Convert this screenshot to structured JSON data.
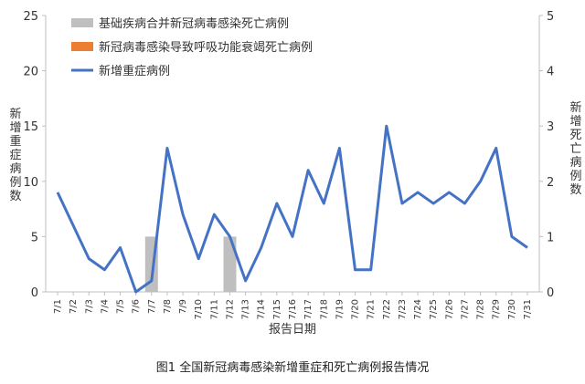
{
  "chart_data": {
    "type": "line",
    "caption": "图1 全国新冠病毒感染新增重症和死亡病例报告情况",
    "xlabel": "报告日期",
    "ylabel_left": "新增重症病例数",
    "ylabel_right": "新增死亡病例数",
    "ylim_left": [
      0,
      25
    ],
    "ylim_right": [
      0,
      5
    ],
    "yticks_left": [
      "0",
      "5",
      "10",
      "15",
      "20",
      "25"
    ],
    "yticks_right": [
      "0",
      "1",
      "2",
      "3",
      "4",
      "5"
    ],
    "grid": false,
    "legend_position": "top-left",
    "categories": [
      "7/1",
      "7/2",
      "7/3",
      "7/4",
      "7/5",
      "7/6",
      "7/7",
      "7/8",
      "7/9",
      "7/10",
      "7/11",
      "7/12",
      "7/13",
      "7/14",
      "7/15",
      "7/16",
      "7/17",
      "7/18",
      "7/19",
      "7/20",
      "7/21",
      "7/22",
      "7/23",
      "7/24",
      "7/25",
      "7/26",
      "7/27",
      "7/28",
      "7/29",
      "7/30",
      "7/31"
    ],
    "series": [
      {
        "name": "基础疾病合并新冠病毒感染死亡病例",
        "kind": "bar",
        "axis": "right",
        "color": "#bfbfbf",
        "values": [
          0,
          0,
          0,
          0,
          0,
          0,
          1,
          0,
          0,
          0,
          0,
          1,
          0,
          0,
          0,
          0,
          0,
          0,
          0,
          0,
          0,
          0,
          0,
          0,
          0,
          0,
          0,
          0,
          0,
          0,
          0
        ]
      },
      {
        "name": "新冠病毒感染导致呼吸功能衰竭死亡病例",
        "kind": "bar",
        "axis": "right",
        "color": "#ed7d31",
        "values": [
          0,
          0,
          0,
          0,
          0,
          0,
          0,
          0,
          0,
          0,
          0,
          0,
          0,
          0,
          0,
          0,
          0,
          0,
          0,
          0,
          0,
          0,
          0,
          0,
          0,
          0,
          0,
          0,
          0,
          0,
          0
        ]
      },
      {
        "name": "新增重症病例",
        "kind": "line",
        "axis": "left",
        "color": "#4472c4",
        "values": [
          9,
          6,
          3,
          2,
          4,
          0,
          1,
          13,
          7,
          3,
          7,
          5,
          1,
          4,
          8,
          5,
          11,
          8,
          13,
          2,
          2,
          15,
          8,
          9,
          8,
          9,
          8,
          10,
          13,
          5,
          4
        ]
      }
    ]
  }
}
